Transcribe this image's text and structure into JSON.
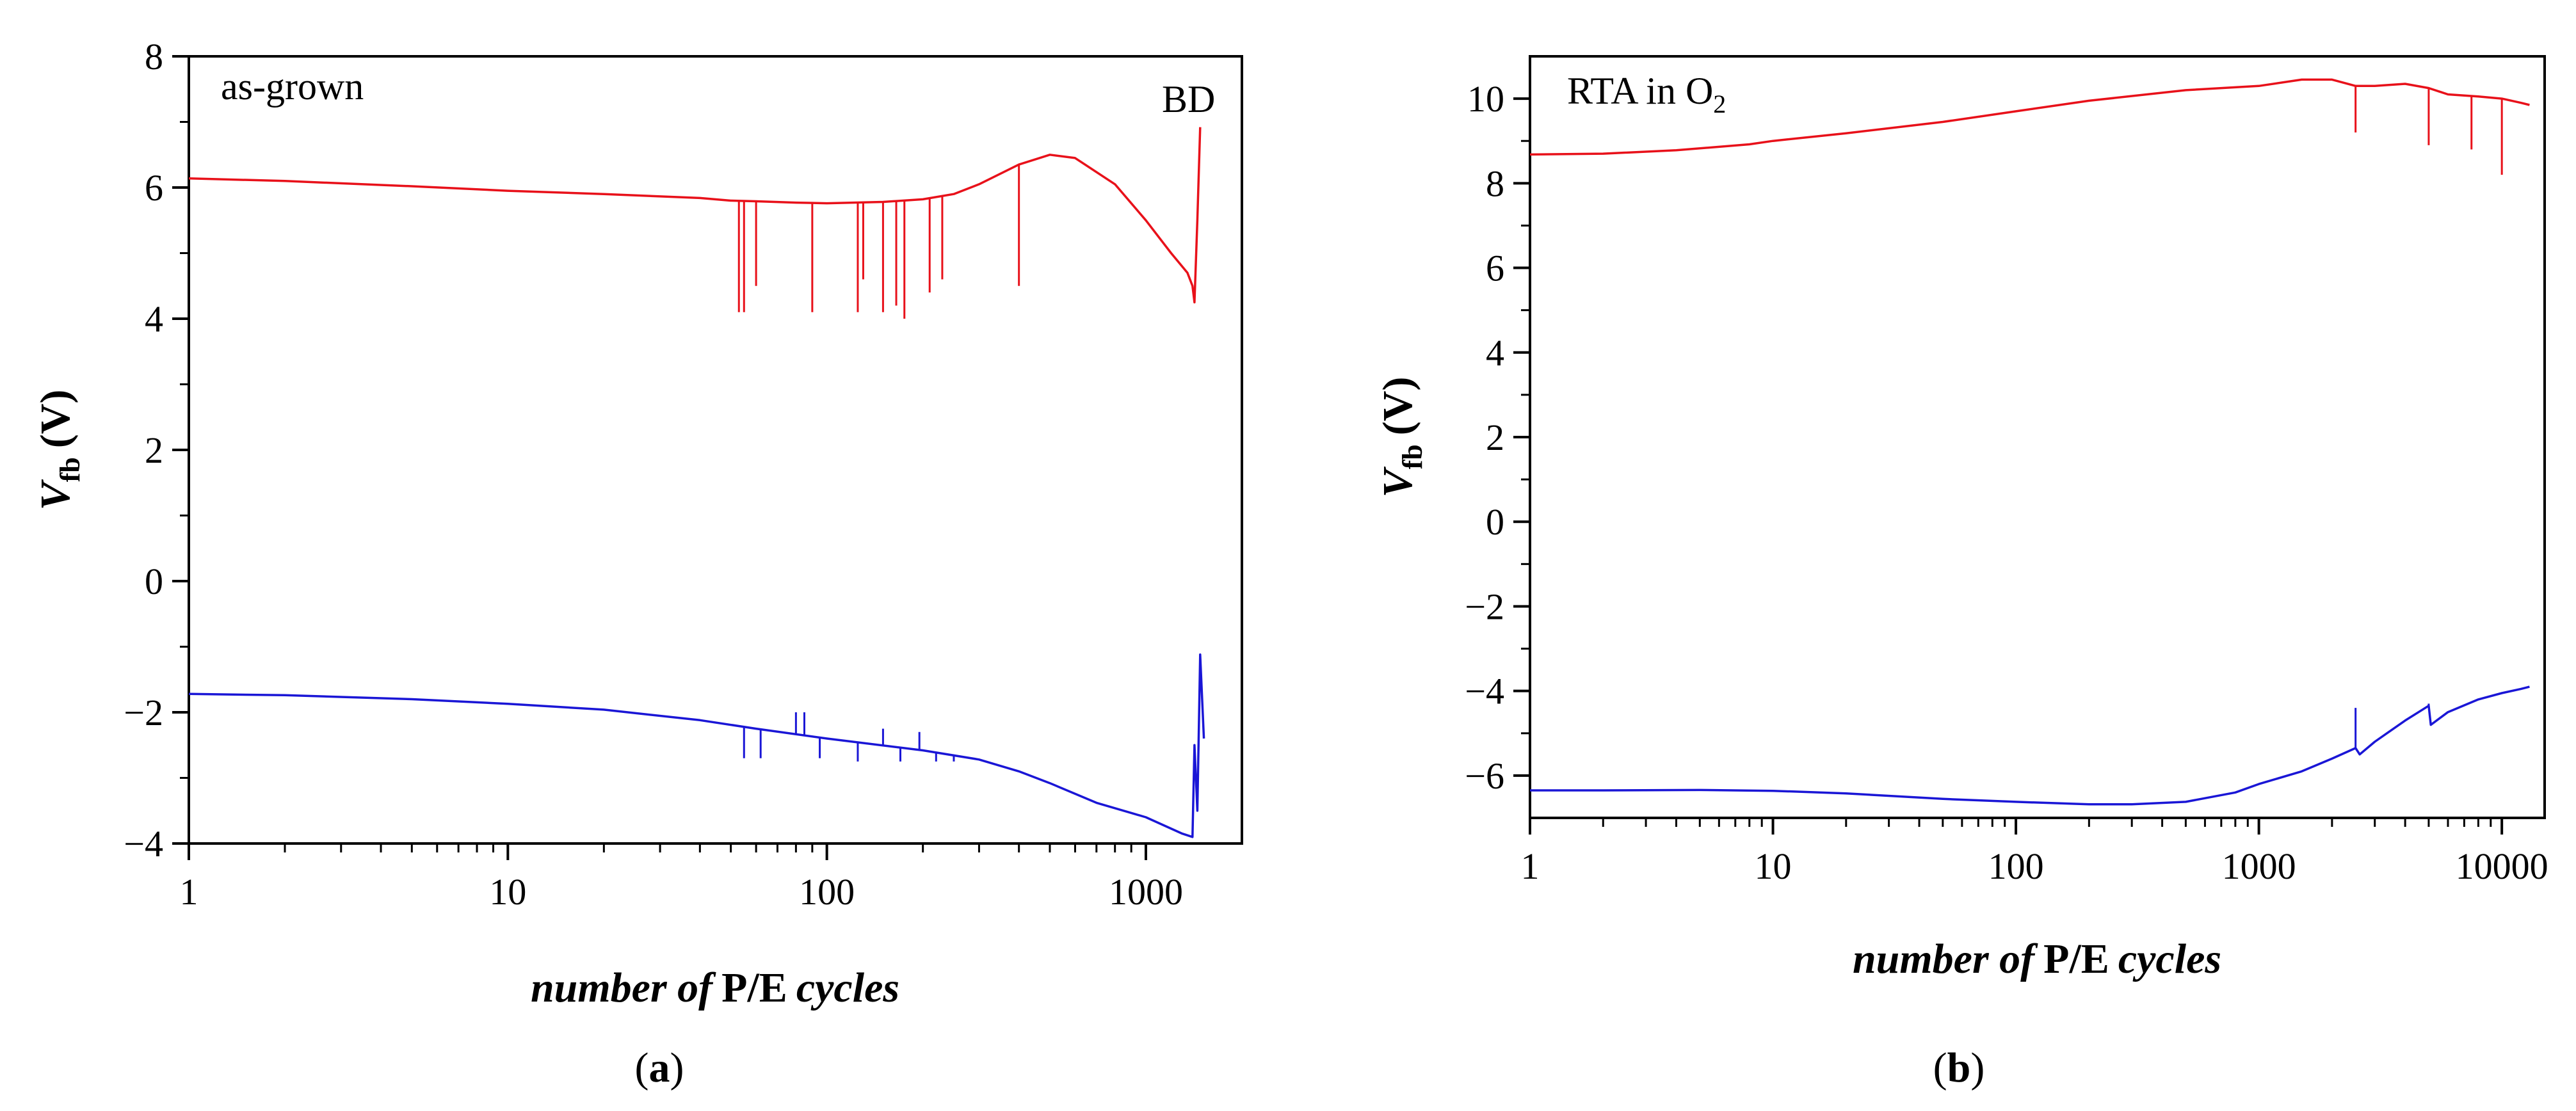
{
  "chart_data": [
    {
      "panel": "a",
      "caption": "a",
      "type": "line",
      "xscale": "log",
      "xlim": [
        1,
        2000
      ],
      "ylim": [
        -4,
        8
      ],
      "xticks": [
        "1",
        "10",
        "100",
        "1000"
      ],
      "yticks": [
        "8",
        "6",
        "4",
        "2",
        "0",
        "−2",
        "−4"
      ],
      "xlabel": {
        "italic": "number of",
        "roman": "P/E",
        "italic2": "cycles"
      },
      "ylabel": {
        "main": "V",
        "sub": "fb",
        "unit": "(V)"
      },
      "annotations": {
        "corner": "as-grown",
        "breakdown": "BD"
      },
      "grid": false,
      "series": [
        {
          "color": "#e8111a",
          "x": [
            1,
            2,
            5,
            10,
            20,
            40,
            50,
            60,
            80,
            100,
            150,
            200,
            250,
            300,
            400,
            500,
            600,
            800,
            1000,
            1200,
            1350,
            1400,
            1420,
            1450,
            1480
          ],
          "y": [
            6.14,
            6.1,
            6.02,
            5.95,
            5.9,
            5.84,
            5.8,
            5.79,
            5.77,
            5.76,
            5.78,
            5.82,
            5.9,
            6.05,
            6.35,
            6.5,
            6.45,
            6.05,
            5.5,
            5.0,
            4.7,
            4.5,
            4.25,
            5.5,
            6.92
          ],
          "spikes": [
            [
              53,
              4.1
            ],
            [
              55,
              4.1
            ],
            [
              60,
              4.5
            ],
            [
              90,
              4.1
            ],
            [
              125,
              4.1
            ],
            [
              130,
              4.6
            ],
            [
              150,
              4.1
            ],
            [
              165,
              4.2
            ],
            [
              175,
              4.0
            ],
            [
              210,
              4.4
            ],
            [
              230,
              4.6
            ],
            [
              400,
              4.5
            ]
          ]
        },
        {
          "color": "#1a16d6",
          "x": [
            1,
            2,
            5,
            10,
            20,
            40,
            60,
            100,
            200,
            300,
            400,
            500,
            700,
            1000,
            1300,
            1400,
            1420,
            1450,
            1480,
            1520
          ],
          "y": [
            -1.72,
            -1.74,
            -1.8,
            -1.87,
            -1.96,
            -2.12,
            -2.25,
            -2.4,
            -2.58,
            -2.72,
            -2.9,
            -3.08,
            -3.38,
            -3.6,
            -3.85,
            -3.9,
            -2.5,
            -3.5,
            -1.12,
            -2.4
          ],
          "spikes": [
            [
              55,
              -2.7
            ],
            [
              62,
              -2.7
            ],
            [
              80,
              -2.0
            ],
            [
              85,
              -2.0
            ],
            [
              95,
              -2.7
            ],
            [
              125,
              -2.75
            ],
            [
              150,
              -2.25
            ],
            [
              170,
              -2.75
            ],
            [
              195,
              -2.3
            ],
            [
              220,
              -2.75
            ],
            [
              250,
              -2.75
            ]
          ]
        }
      ]
    },
    {
      "panel": "b",
      "caption": "b",
      "type": "line",
      "xscale": "log",
      "xlim": [
        1,
        15000
      ],
      "ylim": [
        -7,
        11
      ],
      "xticks": [
        "1",
        "10",
        "100",
        "1000",
        "10000"
      ],
      "yticks": [
        "10",
        "8",
        "6",
        "4",
        "2",
        "0",
        "−2",
        "−4",
        "−6"
      ],
      "xlabel": {
        "italic": "number of",
        "roman": "P/E",
        "italic2": "cycles"
      },
      "ylabel": {
        "main": "V",
        "sub": "fb",
        "unit": "(V)"
      },
      "annotations": {
        "corner_main": "RTA in O",
        "corner_sub": "2"
      },
      "grid": false,
      "series": [
        {
          "color": "#e8111a",
          "x": [
            1,
            2,
            4,
            8,
            10,
            20,
            50,
            100,
            200,
            500,
            1000,
            1500,
            2000,
            2500,
            3000,
            4000,
            5000,
            6000,
            8000,
            10000,
            12000,
            13000
          ],
          "y": [
            8.68,
            8.7,
            8.78,
            8.92,
            9.0,
            9.18,
            9.45,
            9.7,
            9.95,
            10.2,
            10.3,
            10.45,
            10.45,
            10.3,
            10.3,
            10.35,
            10.25,
            10.1,
            10.05,
            10.0,
            9.9,
            9.85
          ],
          "spikes": [
            [
              2500,
              9.2
            ],
            [
              5000,
              8.9
            ],
            [
              7500,
              8.8
            ],
            [
              10000,
              8.2
            ]
          ]
        },
        {
          "color": "#1a16d6",
          "x": [
            1,
            2,
            5,
            10,
            20,
            50,
            100,
            200,
            300,
            500,
            800,
            1000,
            1500,
            2000,
            2500,
            2600,
            3000,
            4000,
            5000,
            5100,
            6000,
            8000,
            10000,
            12000,
            13000
          ],
          "y": [
            -6.35,
            -6.35,
            -6.34,
            -6.36,
            -6.42,
            -6.55,
            -6.62,
            -6.68,
            -6.68,
            -6.62,
            -6.4,
            -6.2,
            -5.9,
            -5.6,
            -5.35,
            -5.5,
            -5.2,
            -4.7,
            -4.35,
            -4.8,
            -4.5,
            -4.2,
            -4.05,
            -3.95,
            -3.9
          ],
          "spikes": [
            [
              2500,
              -4.4
            ],
            [
              5000,
              -4.3
            ]
          ]
        }
      ]
    }
  ]
}
